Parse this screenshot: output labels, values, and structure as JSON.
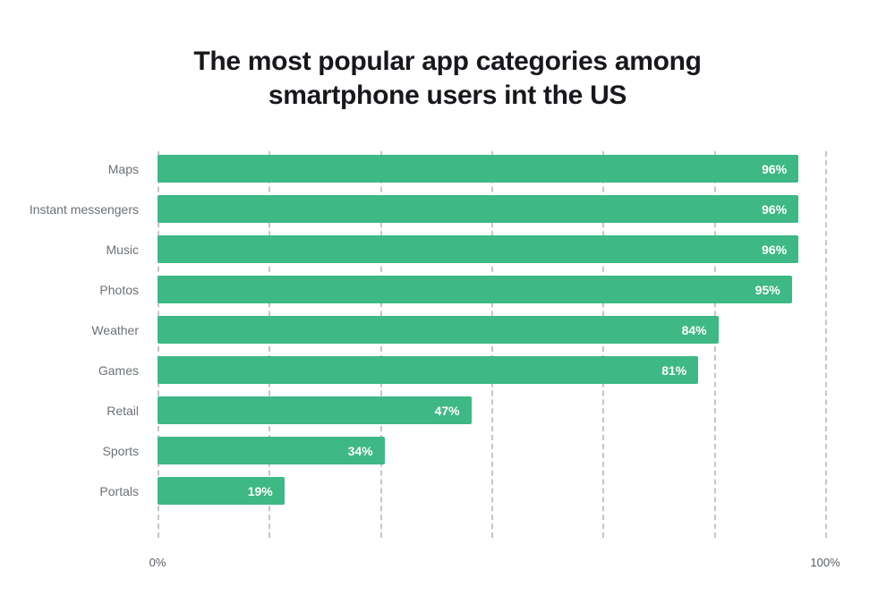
{
  "chart": {
    "title_line1": "The most popular app categories among",
    "title_line2": "smartphone users int the US",
    "x_axis": {
      "min_label": "0%",
      "max_label": "100%"
    }
  },
  "chart_data": {
    "type": "bar",
    "orientation": "horizontal",
    "title": "The most popular app categories among smartphone users int the US",
    "categories": [
      "Maps",
      "Instant messengers",
      "Music",
      "Photos",
      "Weather",
      "Games",
      "Retail",
      "Sports",
      "Portals"
    ],
    "values": [
      96,
      96,
      96,
      95,
      84,
      81,
      47,
      34,
      19
    ],
    "value_labels": [
      "96%",
      "96%",
      "96%",
      "95%",
      "84%",
      "81%",
      "47%",
      "34%",
      "19%"
    ],
    "xlabel": "",
    "ylabel": "",
    "xlim": [
      0,
      100
    ],
    "x_tick_labels": [
      "0%",
      "100%"
    ],
    "gridline_count": 7,
    "grid": "dashed-vertical",
    "legend": "none",
    "bar_color": "#3eb884",
    "value_label_color": "#ffffff",
    "category_label_color": "#6b7177",
    "background_color": "#ffffff"
  }
}
